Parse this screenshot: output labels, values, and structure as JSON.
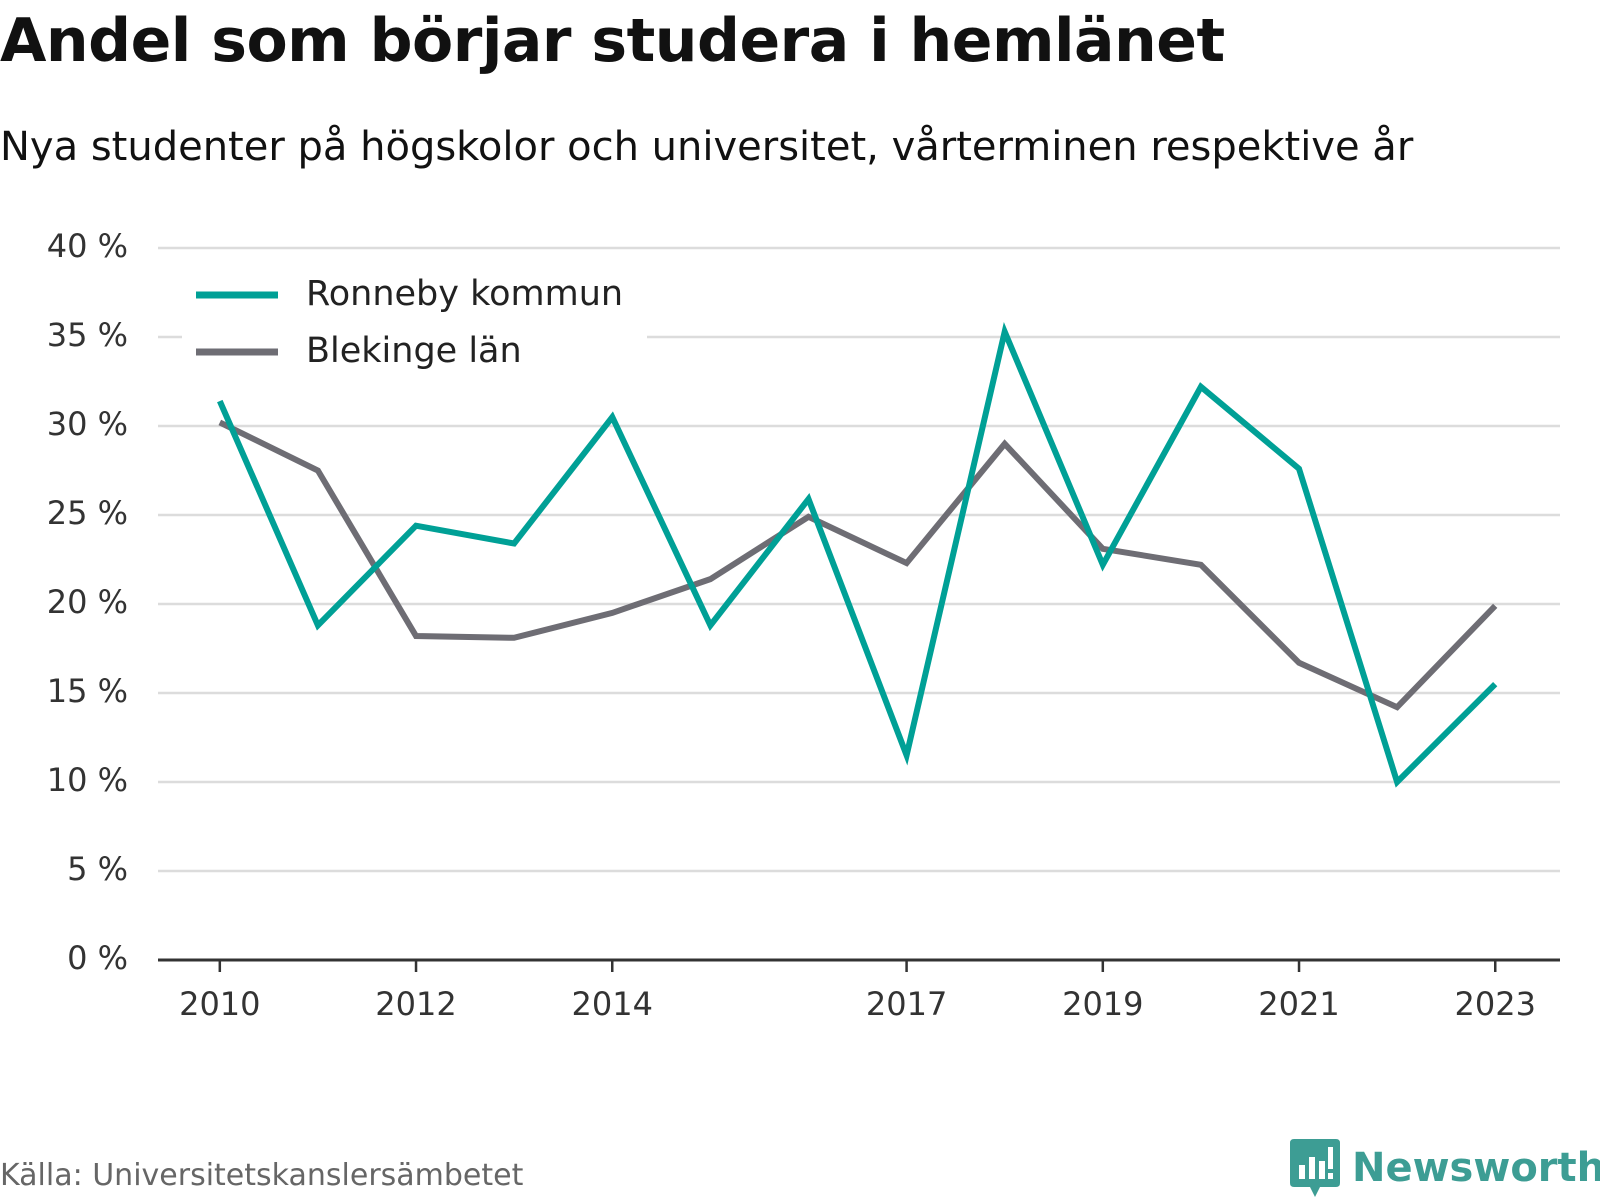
{
  "header": {
    "title": "Andel som börjar studera i hemlänet",
    "subtitle": "Nya studenter på högskolor och universitet, vårterminen respektive år"
  },
  "footer": {
    "source": "Källa: Universitetskanslersämbetet",
    "brand": "Newsworthy",
    "brand_icon": "newsworthy-logo-icon"
  },
  "chart_data": {
    "type": "line",
    "title": "Andel som börjar studera i hemlänet",
    "subtitle": "Nya studenter på högskolor och universitet, vårterminen respektive år",
    "x": [
      2010,
      2011,
      2012,
      2013,
      2014,
      2015,
      2016,
      2017,
      2018,
      2019,
      2020,
      2021,
      2022,
      2023
    ],
    "x_tick_labels": [
      "2010",
      "2012",
      "2014",
      "2017",
      "2019",
      "2021",
      "2023"
    ],
    "y_ticks": [
      0,
      5,
      10,
      15,
      20,
      25,
      30,
      35,
      40
    ],
    "y_tick_labels": [
      "0 %",
      "5 %",
      "10 %",
      "15 %",
      "20 %",
      "25 %",
      "30 %",
      "35 %",
      "40 %"
    ],
    "ylim": [
      0,
      40
    ],
    "xlim": [
      2009.37,
      2023.66
    ],
    "grid": true,
    "legend_position": "top-left",
    "series": [
      {
        "name": "Ronneby kommun",
        "color": "#00a096",
        "values": [
          31.4,
          18.8,
          24.4,
          23.4,
          30.5,
          18.8,
          25.9,
          11.5,
          35.3,
          22.2,
          32.2,
          27.6,
          10.0,
          15.5
        ]
      },
      {
        "name": "Blekinge län",
        "color": "#6e6d74",
        "values": [
          30.2,
          27.5,
          18.2,
          18.1,
          19.5,
          21.4,
          24.9,
          22.3,
          29.0,
          23.1,
          22.2,
          16.7,
          14.2,
          19.9
        ]
      }
    ]
  }
}
